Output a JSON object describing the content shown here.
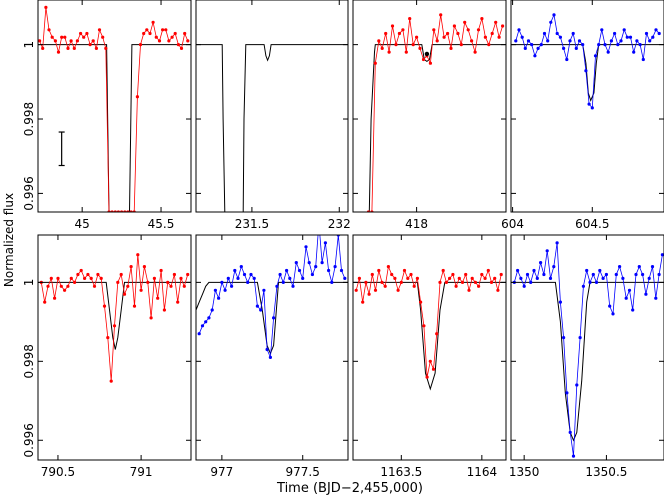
{
  "figure": {
    "ylabel": "Normalized flux",
    "xlabel": "Time (BJD−2,455,000)",
    "ylim": [
      0.9955,
      1.0012
    ],
    "yticks": [
      0.996,
      0.998,
      1
    ],
    "ytick_labels": [
      "0.996",
      "0.998",
      "1"
    ]
  },
  "chart_data": [
    {
      "type": "line",
      "xlim": [
        44.72,
        45.69
      ],
      "ylim": [
        0.9955,
        1.0012
      ],
      "xticks": [
        45,
        45.5
      ],
      "xtick_labels": [
        "45",
        "45.5"
      ],
      "series_color": "#ff0000",
      "data_series": {
        "name": "",
        "x": [
          44.73,
          44.75,
          44.77,
          44.79,
          44.81,
          44.83,
          44.85,
          44.87,
          44.89,
          44.91,
          44.93,
          44.95,
          44.97,
          44.99,
          45.01,
          45.03,
          45.05,
          45.07,
          45.09,
          45.11,
          45.13,
          45.15,
          45.17,
          45.19,
          45.21,
          45.23,
          45.25,
          45.27,
          45.29,
          45.31,
          45.33,
          45.35,
          45.37,
          45.39,
          45.41,
          45.43,
          45.45,
          45.47,
          45.49,
          45.51,
          45.53,
          45.55,
          45.57,
          45.59,
          45.61,
          45.63,
          45.65,
          45.67
        ],
        "y": [
          1.0001,
          0.9999,
          1.001,
          1.0004,
          1.0002,
          1.0001,
          0.9998,
          1.0002,
          1.0002,
          0.9999,
          1.0001,
          0.9999,
          1.0001,
          1.0003,
          1.0002,
          1.0003,
          1.0,
          1.0001,
          0.9999,
          1.0004,
          1.0002,
          0.9999,
          0.9955,
          0.9955,
          0.9955,
          0.9955,
          0.9955,
          0.9955,
          0.9955,
          0.9955,
          0.9955,
          0.9986,
          1.0,
          1.0003,
          1.0004,
          1.0003,
          1.0006,
          1.0002,
          1.0001,
          1.0004,
          1.0004,
          1.0001,
          1.0002,
          1.0003,
          1.0,
          0.9999,
          1.0003,
          1.0001
        ]
      },
      "model": {
        "x": [
          44.72,
          45.155,
          45.16,
          45.17,
          45.3,
          45.31,
          45.315,
          45.69
        ],
        "y": [
          1,
          1,
          0.9985,
          0.9955,
          0.9955,
          0.9985,
          1,
          1
        ]
      },
      "error_bar": {
        "x": 44.87,
        "y": 0.9972,
        "half_width": 0.00045
      }
    },
    {
      "type": "line",
      "xlim": [
        231.18,
        232.05
      ],
      "ylim": [
        0.9955,
        1.0012
      ],
      "xticks": [
        231.5,
        232
      ],
      "xtick_labels": [
        "231.5",
        "232"
      ],
      "series_color": "#000000",
      "model": {
        "x": [
          231.18,
          231.33,
          231.335,
          231.345,
          231.45,
          231.455,
          231.465,
          231.57,
          231.58,
          231.59,
          231.6,
          231.61,
          232.05
        ],
        "y": [
          1,
          1,
          0.998,
          0.9955,
          0.9955,
          0.998,
          1,
          1,
          0.9997,
          0.99958,
          0.9997,
          1,
          1
        ]
      }
    },
    {
      "type": "line",
      "xlim": [
        417.63,
        418.52
      ],
      "ylim": [
        0.9955,
        1.0012
      ],
      "xticks": [
        418
      ],
      "xtick_labels": [
        "418"
      ],
      "series_color": "#ff0000",
      "highlight_point": {
        "x": 418.06,
        "y": 0.99975,
        "color": "#000000"
      },
      "data_series": {
        "name": "",
        "x": [
          417.72,
          417.74,
          417.76,
          417.78,
          417.8,
          417.82,
          417.84,
          417.86,
          417.88,
          417.9,
          417.92,
          417.94,
          417.96,
          417.98,
          418.0,
          418.02,
          418.04,
          418.06,
          418.08,
          418.1,
          418.12,
          418.14,
          418.16,
          418.18,
          418.2,
          418.22,
          418.24,
          418.26,
          418.28,
          418.3,
          418.32,
          418.34,
          418.36,
          418.38,
          418.4,
          418.42,
          418.44,
          418.46,
          418.48,
          418.5
        ],
        "y": [
          0.9955,
          0.9955,
          0.9995,
          1.0001,
          0.9999,
          1.0003,
          0.9998,
          1.0005,
          1.0,
          1.0003,
          1.0004,
          0.9998,
          1.0007,
          1.0,
          1.0002,
          0.9999,
          0.9996,
          0.9997,
          0.9995,
          1.0004,
          1.0001,
          1.0008,
          1.0002,
          1.0003,
          0.9999,
          1.0005,
          1.0003,
          1.0,
          1.0006,
          1.0004,
          1.0001,
          0.9998,
          1.0004,
          1.0007,
          1.0002,
          1.0,
          1.0003,
          1.0006,
          1.0002,
          1.0005
        ]
      },
      "model": {
        "x": [
          417.63,
          417.72,
          417.725,
          417.735,
          417.755,
          417.76,
          418.03,
          418.045,
          418.06,
          418.075,
          418.09,
          418.52
        ],
        "y": [
          0.9955,
          0.9955,
          0.9955,
          0.998,
          0.9998,
          1,
          1,
          0.9996,
          0.99955,
          0.9996,
          1,
          1
        ]
      }
    },
    {
      "type": "line",
      "xlim": [
        603.99,
        604.95
      ],
      "ylim": [
        0.9955,
        1.0012
      ],
      "xticks": [
        604,
        604.5
      ],
      "xtick_labels": [
        "604",
        "604.5"
      ],
      "series_color": "#0000ff",
      "data_series": {
        "name": "",
        "x": [
          604.02,
          604.04,
          604.06,
          604.08,
          604.1,
          604.12,
          604.14,
          604.16,
          604.18,
          604.2,
          604.22,
          604.24,
          604.26,
          604.28,
          604.3,
          604.32,
          604.34,
          604.36,
          604.38,
          604.4,
          604.42,
          604.44,
          604.46,
          604.48,
          604.5,
          604.52,
          604.54,
          604.56,
          604.58,
          604.6,
          604.62,
          604.64,
          604.66,
          604.68,
          604.7,
          604.72,
          604.74,
          604.76,
          604.78,
          604.8,
          604.82,
          604.84,
          604.86,
          604.88,
          604.9,
          604.92
        ],
        "y": [
          1.0001,
          1.0004,
          1.0002,
          0.9999,
          1.0001,
          1.0,
          0.9997,
          0.9999,
          1.0,
          1.0003,
          1.0001,
          1.0006,
          1.0008,
          1.0003,
          1.0002,
          0.9999,
          0.9996,
          1.0001,
          1.0003,
          0.9999,
          1.0001,
          1.0,
          0.9993,
          0.9984,
          0.9983,
          0.9997,
          1.0,
          1.0004,
          1.0,
          0.9998,
          1.0001,
          1.0003,
          1.0,
          1.0001,
          1.0004,
          1.0002,
          1.0002,
          0.9998,
          1.0001,
          1.0,
          0.9996,
          1.0003,
          1.0001,
          1.0002,
          1.0004,
          1.0003
        ]
      },
      "model": {
        "x": [
          603.99,
          604.44,
          604.46,
          604.475,
          604.49,
          604.51,
          604.525,
          604.54,
          604.95
        ],
        "y": [
          1,
          1,
          0.9995,
          0.9987,
          0.9985,
          0.9987,
          0.9995,
          1,
          1
        ]
      }
    },
    {
      "type": "line",
      "xlim": [
        790.38,
        791.3
      ],
      "ylim": [
        0.9955,
        1.0012
      ],
      "xticks": [
        790.5,
        791
      ],
      "xtick_labels": [
        "790.5",
        "791"
      ],
      "series_color": "#ff0000",
      "data_series": {
        "name": "",
        "x": [
          790.4,
          790.42,
          790.44,
          790.46,
          790.48,
          790.5,
          790.52,
          790.54,
          790.56,
          790.58,
          790.6,
          790.62,
          790.64,
          790.66,
          790.68,
          790.7,
          790.72,
          790.74,
          790.76,
          790.78,
          790.8,
          790.82,
          790.84,
          790.86,
          790.88,
          790.9,
          790.92,
          790.94,
          790.96,
          790.98,
          791.0,
          791.02,
          791.04,
          791.06,
          791.08,
          791.1,
          791.12,
          791.14,
          791.16,
          791.18,
          791.2,
          791.22,
          791.24,
          791.26,
          791.28
        ],
        "y": [
          1.0,
          0.9995,
          0.9999,
          1.0001,
          0.9996,
          1.0001,
          0.9999,
          0.9998,
          0.9999,
          1.0001,
          1.0,
          1.0002,
          1.0003,
          1.0001,
          1.0002,
          1.0001,
          0.9999,
          1.0002,
          1.0001,
          0.9994,
          0.9986,
          0.9975,
          0.9989,
          1.0,
          1.0002,
          0.9997,
          0.9999,
          1.0004,
          0.9994,
          1.0007,
          0.9998,
          1.0004,
          1.0,
          0.9991,
          1.0001,
          0.9996,
          1.0003,
          0.9993,
          1.0,
          0.9999,
          1.0002,
          0.9995,
          1.0001,
          0.9999,
          1.0002
        ]
      },
      "model": {
        "x": [
          790.38,
          790.79,
          790.81,
          790.83,
          790.845,
          790.86,
          790.88,
          790.9,
          791.3
        ],
        "y": [
          1,
          1,
          0.9993,
          0.9986,
          0.9983,
          0.9986,
          0.9993,
          1,
          1
        ]
      }
    },
    {
      "type": "line",
      "xlim": [
        976.84,
        977.78
      ],
      "ylim": [
        0.9955,
        1.0012
      ],
      "xticks": [
        977,
        977.5
      ],
      "xtick_labels": [
        "977",
        "977.5"
      ],
      "series_color": "#0000ff",
      "data_series": {
        "name": "",
        "x": [
          976.86,
          976.88,
          976.9,
          976.92,
          976.94,
          976.96,
          976.98,
          977.0,
          977.02,
          977.04,
          977.06,
          977.08,
          977.1,
          977.12,
          977.14,
          977.16,
          977.18,
          977.2,
          977.22,
          977.24,
          977.26,
          977.28,
          977.3,
          977.32,
          977.34,
          977.36,
          977.38,
          977.4,
          977.42,
          977.44,
          977.46,
          977.48,
          977.5,
          977.52,
          977.54,
          977.56,
          977.58,
          977.6,
          977.62,
          977.64,
          977.66,
          977.68,
          977.7,
          977.72,
          977.74,
          977.76
        ],
        "y": [
          0.9987,
          0.9989,
          0.999,
          0.9991,
          0.9993,
          0.9998,
          0.9996,
          1.0,
          0.9998,
          1.0001,
          0.9999,
          1.0003,
          1.0001,
          1.0004,
          1.0002,
          1.0,
          1.0002,
          1.0001,
          0.9994,
          0.9993,
          0.9998,
          0.9983,
          0.9981,
          0.9991,
          0.9999,
          1.0002,
          1.0,
          1.0003,
          1.0001,
          0.9999,
          1.0005,
          1.0003,
          1.0001,
          1.0009,
          1.0005,
          1.0002,
          1.0004,
          1.0015,
          1.0005,
          1.001,
          1.0003,
          1.0,
          1.0004,
          1.0012,
          1.0003,
          1.0001
        ]
      },
      "model": {
        "x": [
          976.84,
          976.86,
          976.88,
          976.9,
          976.92,
          976.94,
          977.22,
          977.25,
          977.28,
          977.3,
          977.32,
          977.35,
          977.78
        ],
        "y": [
          0.9993,
          0.9995,
          0.9997,
          0.9999,
          1,
          1,
          1,
          0.9993,
          0.9984,
          0.9982,
          0.9984,
          1,
          1
        ]
      }
    },
    {
      "type": "line",
      "xlim": [
        1163.2,
        1164.15
      ],
      "ylim": [
        0.9955,
        1.0012
      ],
      "xticks": [
        1163.5,
        1164
      ],
      "xtick_labels": [
        "1163.5",
        "1164"
      ],
      "series_color": "#ff0000",
      "data_series": {
        "name": "",
        "x": [
          1163.22,
          1163.24,
          1163.26,
          1163.28,
          1163.3,
          1163.32,
          1163.34,
          1163.36,
          1163.38,
          1163.4,
          1163.42,
          1163.44,
          1163.46,
          1163.48,
          1163.5,
          1163.52,
          1163.54,
          1163.56,
          1163.58,
          1163.6,
          1163.62,
          1163.64,
          1163.66,
          1163.68,
          1163.7,
          1163.72,
          1163.74,
          1163.76,
          1163.78,
          1163.8,
          1163.82,
          1163.84,
          1163.86,
          1163.88,
          1163.9,
          1163.92,
          1163.94,
          1163.96,
          1163.98,
          1164.0,
          1164.02,
          1164.04,
          1164.06,
          1164.08,
          1164.1,
          1164.12
        ],
        "y": [
          0.9998,
          1.0001,
          0.9995,
          1.0,
          0.9997,
          1.0002,
          0.9998,
          1.0003,
          1.0,
          0.9999,
          1.0004,
          1.0002,
          1.0001,
          0.9998,
          1.0,
          1.0003,
          1.0001,
          1.0002,
          0.9999,
          1.0001,
          0.9995,
          0.9989,
          0.9976,
          0.998,
          0.9978,
          0.9987,
          1.0,
          1.0003,
          1.0,
          1.0001,
          1.0002,
          0.9999,
          1.0001,
          1.0,
          1.0002,
          0.9998,
          1.0001,
          1.0,
          0.9999,
          1.0002,
          1.0001,
          1.0003,
          1.0,
          1.0001,
          0.9998,
          1.0002
        ]
      },
      "model": {
        "x": [
          1163.2,
          1163.6,
          1163.62,
          1163.65,
          1163.68,
          1163.71,
          1163.74,
          1163.77,
          1164.15
        ],
        "y": [
          1,
          1,
          0.9993,
          0.9977,
          0.9973,
          0.9977,
          0.9993,
          1,
          1
        ]
      }
    },
    {
      "type": "line",
      "xlim": [
        1349.92,
        1350.85
      ],
      "ylim": [
        0.9955,
        1.0012
      ],
      "xticks": [
        1350,
        1350.5
      ],
      "xtick_labels": [
        "1350",
        "1350.5"
      ],
      "series_color": "#0000ff",
      "data_series": {
        "name": "",
        "x": [
          1349.94,
          1349.96,
          1349.98,
          1350.0,
          1350.02,
          1350.04,
          1350.06,
          1350.08,
          1350.1,
          1350.12,
          1350.14,
          1350.16,
          1350.18,
          1350.2,
          1350.22,
          1350.24,
          1350.26,
          1350.28,
          1350.3,
          1350.32,
          1350.34,
          1350.36,
          1350.38,
          1350.4,
          1350.42,
          1350.44,
          1350.46,
          1350.48,
          1350.5,
          1350.52,
          1350.54,
          1350.56,
          1350.58,
          1350.6,
          1350.62,
          1350.64,
          1350.66,
          1350.68,
          1350.7,
          1350.72,
          1350.74,
          1350.76,
          1350.78,
          1350.8,
          1350.82,
          1350.84
        ],
        "y": [
          1.0,
          1.0003,
          1.0001,
          0.9999,
          1.0002,
          1.0,
          1.0003,
          1.0001,
          1.0005,
          1.0002,
          1.0008,
          1.0001,
          1.0004,
          1.001,
          0.9995,
          0.9986,
          0.9972,
          0.9962,
          0.9956,
          0.9974,
          0.9986,
          0.9999,
          1.0003,
          1.0,
          1.0002,
          1.0,
          1.0003,
          1.0001,
          1.0002,
          0.9994,
          0.9992,
          1.0002,
          1.0004,
          1.0001,
          0.9996,
          0.9998,
          0.9993,
          1.0002,
          1.0004,
          1.0002,
          0.9997,
          1.0001,
          1.0004,
          0.9996,
          1.0002,
          1.0007
        ]
      },
      "model": {
        "x": [
          1349.92,
          1350.19,
          1350.22,
          1350.25,
          1350.28,
          1350.3,
          1350.32,
          1350.35,
          1350.38,
          1350.4,
          1350.85
        ],
        "y": [
          1,
          1,
          0.999,
          0.9972,
          0.9962,
          0.996,
          0.9962,
          0.9975,
          0.9995,
          1,
          1
        ]
      }
    }
  ]
}
